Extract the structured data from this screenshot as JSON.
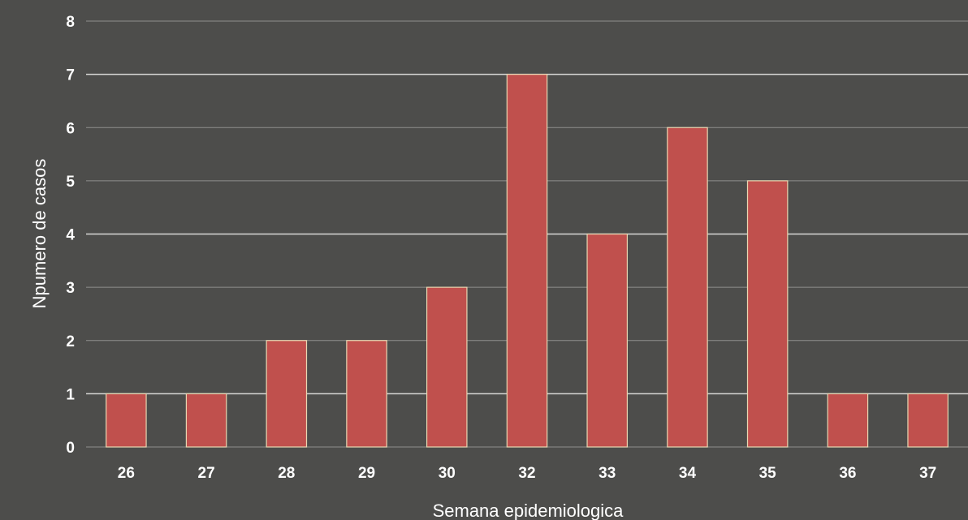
{
  "chart_data": {
    "type": "bar",
    "title": "",
    "xlabel": "Semana epidemiologica",
    "ylabel": "Npumero de casos",
    "categories": [
      "26",
      "27",
      "28",
      "29",
      "30",
      "32",
      "33",
      "34",
      "35",
      "36",
      "37"
    ],
    "values": [
      1,
      1,
      2,
      2,
      3,
      7,
      4,
      6,
      5,
      1,
      1
    ],
    "ylim": [
      0,
      8
    ],
    "yticks": [
      "0",
      "1",
      "2",
      "3",
      "4",
      "5",
      "6",
      "7",
      "8"
    ],
    "grid": true,
    "legend": "none",
    "colors": {
      "background": "#4d4d4b",
      "bar_fill": "#c0504d",
      "bar_stroke": "#e8d7b2",
      "gridline": "#8e8e8c",
      "gridline_major": "#d8d8d6",
      "text": "#ffffff"
    }
  }
}
